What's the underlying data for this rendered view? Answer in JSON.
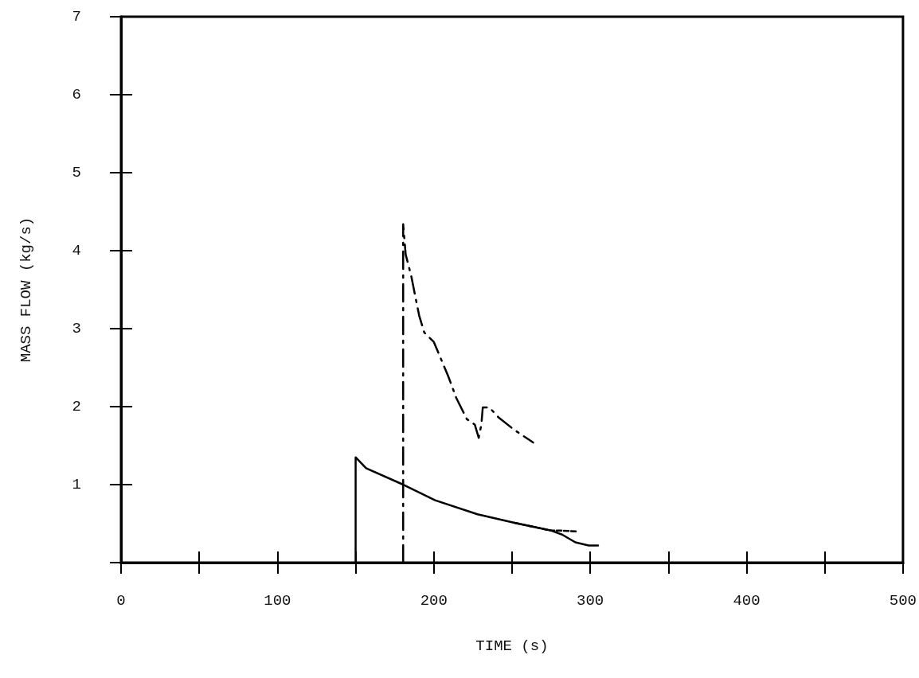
{
  "chart_data": {
    "type": "line",
    "xlabel": "TIME (s)",
    "ylabel": "MASS FLOW (kg/s)",
    "xlim": [
      0,
      500
    ],
    "ylim": [
      0,
      7
    ],
    "xticks": [
      0,
      {
        "value": 50,
        "label": null
      },
      100,
      {
        "value": 150,
        "label": null
      },
      200,
      {
        "value": 250,
        "label": null
      },
      300,
      {
        "value": 350,
        "label": null
      },
      400,
      {
        "value": 450,
        "label": null
      },
      500
    ],
    "yticks": [
      {
        "value": 0,
        "label": null
      },
      1,
      2,
      3,
      4,
      5,
      6,
      7
    ],
    "grid": false,
    "marker": "none",
    "series": [
      {
        "color": "#000000",
        "line_style": "solid",
        "x": [
          150,
          150,
          156.7,
          180.4,
          200.8,
          227.9,
          251.6,
          275.2,
          282,
          290.5,
          299,
          305
        ],
        "values": [
          0,
          1.35,
          1.21,
          1.0,
          0.8,
          0.62,
          0.51,
          0.41,
          0.36,
          0.26,
          0.22,
          0.22
        ]
      },
      {
        "color": "#000000",
        "line_style": "dashed",
        "x": [
          251.6,
          275.2,
          282,
          291.5
        ],
        "values": [
          0.51,
          0.41,
          0.41,
          0.4
        ]
      },
      {
        "color": "#000000",
        "line_style": "dashdot",
        "x": [
          180.4,
          180.4,
          182,
          185.5,
          190.6,
          193.9,
          200,
          209.2,
          214.4,
          221.1,
          226.2,
          228.7,
          230.4,
          231.3,
          235.5,
          241.5,
          251.6,
          263.5
        ],
        "values": [
          0,
          4.34,
          3.95,
          3.68,
          3.17,
          2.95,
          2.83,
          2.39,
          2.11,
          1.84,
          1.77,
          1.6,
          1.77,
          1.99,
          1.99,
          1.86,
          1.7,
          1.54
        ]
      }
    ]
  }
}
